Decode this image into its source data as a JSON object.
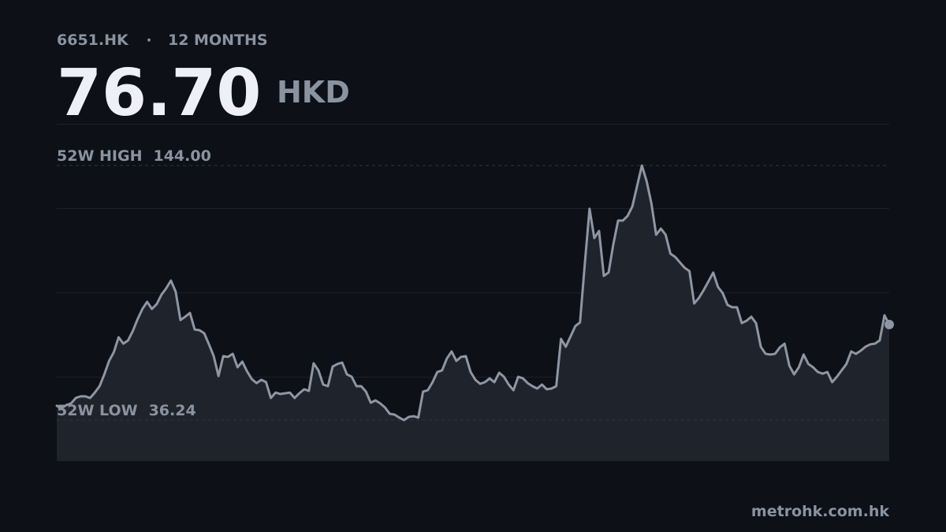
{
  "chart_data": {
    "type": "line",
    "symbol": "6651.HK",
    "separator": "·",
    "period": "12 MONTHS",
    "price": "76.70",
    "currency": "HKD",
    "source": "metrohk.com.hk",
    "color": "#8e96a3",
    "area_color": "#1f232b",
    "ylim": [
      18.9,
      161.7
    ],
    "reference_lines": [
      {
        "name": "52W HIGH",
        "value": 144,
        "value_label": "144.00"
      },
      {
        "name": "52W LOW",
        "value": 36.24,
        "value_label": "36.24"
      }
    ],
    "values": [
      42.3,
      41.3,
      42.6,
      43.3,
      45.6,
      46.3,
      46.3,
      45.6,
      47.9,
      50.6,
      55.6,
      61.3,
      65.0,
      71.3,
      68.6,
      70.0,
      74.0,
      79.0,
      83.3,
      86.3,
      83.3,
      85.3,
      89.3,
      92.0,
      95.3,
      90.6,
      78.6,
      80.0,
      81.6,
      74.6,
      74.3,
      73.0,
      68.3,
      63.3,
      54.9,
      63.3,
      63.0,
      64.3,
      58.6,
      61.0,
      56.9,
      53.6,
      51.9,
      53.3,
      52.3,
      45.6,
      47.9,
      47.3,
      47.6,
      47.9,
      45.6,
      47.6,
      49.3,
      48.6,
      60.3,
      57.3,
      51.3,
      50.6,
      58.9,
      60.0,
      60.6,
      55.6,
      54.6,
      50.6,
      50.6,
      48.3,
      43.6,
      44.6,
      43.3,
      41.6,
      38.9,
      38.6,
      37.3,
      36.24,
      37.6,
      37.9,
      37.3,
      48.3,
      48.9,
      52.3,
      56.6,
      57.3,
      62.3,
      65.3,
      61.3,
      63.0,
      63.3,
      56.6,
      53.3,
      51.6,
      52.3,
      53.9,
      52.3,
      56.3,
      54.6,
      51.3,
      48.9,
      54.6,
      53.9,
      51.9,
      50.6,
      49.6,
      51.3,
      49.3,
      49.6,
      50.6,
      70.6,
      67.3,
      71.6,
      76.0,
      77.6,
      102.3,
      125.7,
      113.3,
      116.3,
      97.3,
      98.7,
      110.7,
      120.7,
      120.7,
      122.7,
      126.7,
      135.4,
      144,
      137.4,
      128.0,
      114.7,
      117.3,
      114.7,
      106.7,
      105.3,
      103.0,
      100.7,
      99.3,
      85.6,
      88.0,
      91.3,
      95.0,
      98.7,
      92.6,
      90.0,
      85.0,
      84.0,
      84.0,
      77.3,
      78.3,
      80.0,
      77.3,
      67.3,
      64.3,
      64.0,
      64.3,
      67.0,
      68.6,
      59.3,
      55.6,
      58.6,
      64.0,
      60.0,
      58.6,
      56.6,
      55.9,
      56.6,
      52.3,
      54.6,
      57.3,
      60.0,
      65.3,
      64.3,
      65.6,
      67.3,
      68.3,
      68.6,
      70.0,
      80.6,
      76.7
    ]
  }
}
